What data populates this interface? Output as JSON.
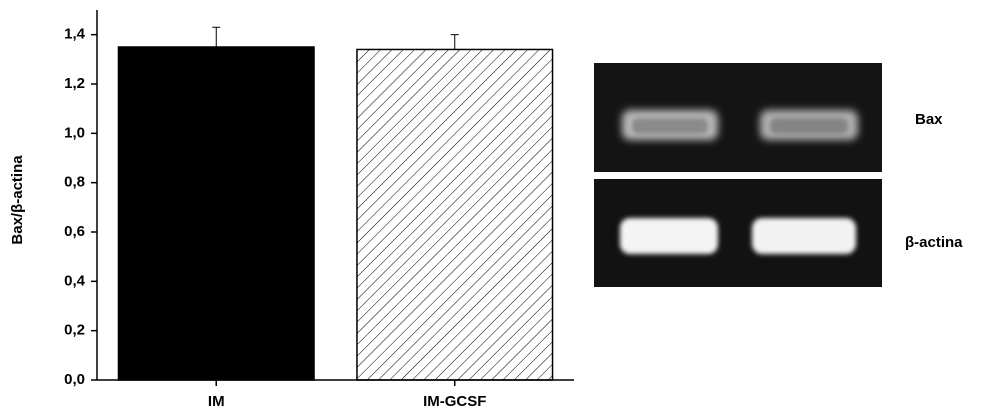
{
  "chart_data": {
    "type": "bar",
    "ylabel": "Bax/β-actina",
    "categories": [
      "IM",
      "IM-GCSF"
    ],
    "values": [
      1.35,
      1.34
    ],
    "errors": [
      0.08,
      0.06
    ],
    "fills": [
      "solid",
      "hatch"
    ],
    "color": "#000000",
    "ylim": [
      0,
      1.5
    ],
    "yticks": [
      {
        "value": 0,
        "label": "0,0"
      },
      {
        "value": 0.2,
        "label": "0,2"
      },
      {
        "value": 0.4,
        "label": "0,4"
      },
      {
        "value": 0.6,
        "label": "0,6"
      },
      {
        "value": 0.8,
        "label": "0,8"
      },
      {
        "value": 1.0,
        "label": "1,0"
      },
      {
        "value": 1.2,
        "label": "1,2"
      },
      {
        "value": 1.4,
        "label": "1,4"
      }
    ]
  },
  "gel": {
    "labels": [
      "Bax",
      "β-actina"
    ]
  }
}
